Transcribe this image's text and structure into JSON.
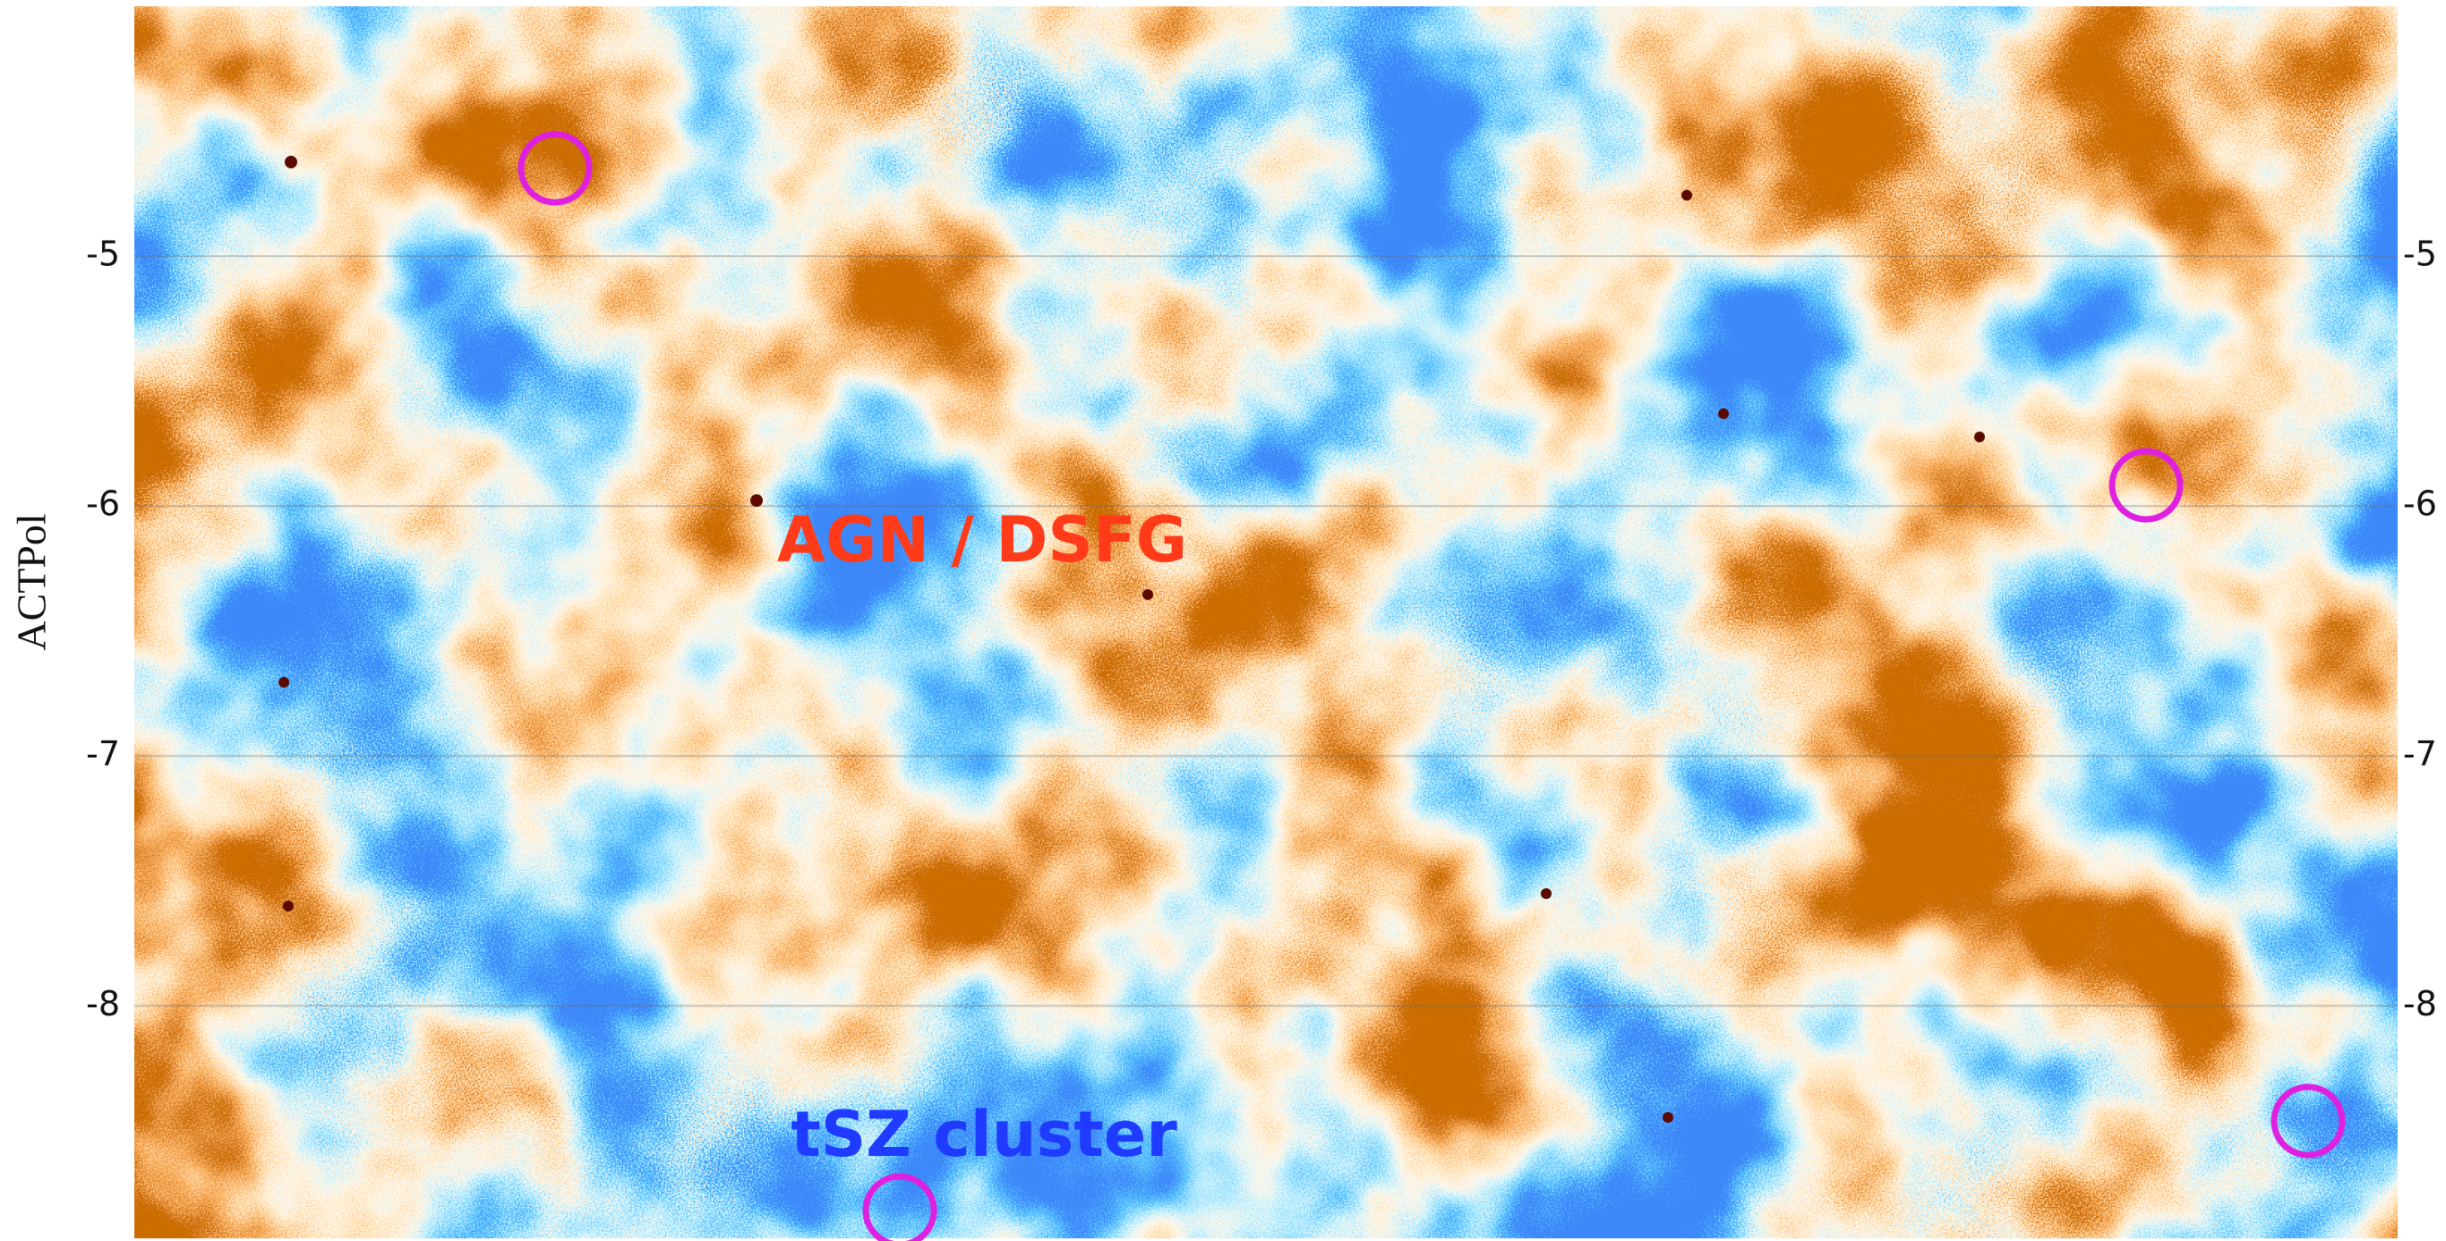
{
  "chart_data": {
    "type": "image",
    "y_label": "ACTPol",
    "annotations": [
      "AGN / DSFG",
      "tSZ cluster"
    ],
    "ylim": [
      -8.93,
      -4.0
    ],
    "yticks": [
      -5,
      -6,
      -7,
      -8
    ],
    "grid": true
  }
}
